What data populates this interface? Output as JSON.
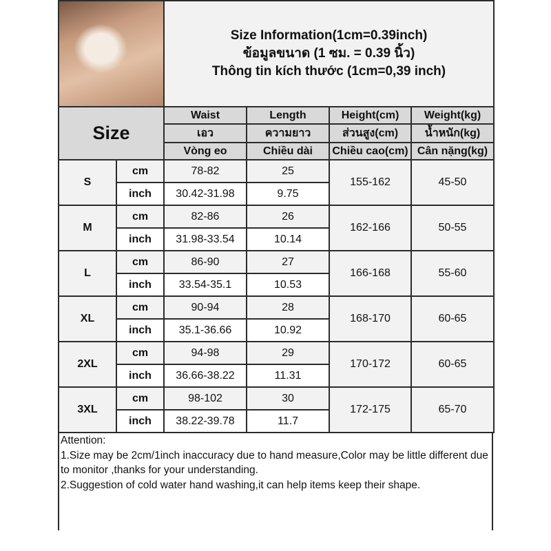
{
  "title": {
    "line1": "Size Information(1cm=0.39inch)",
    "line2": "ข้อมูลขนาด (1 ซม. = 0.39 นิ้ว)",
    "line3": "Thông tin kích thước (1cm=0,39 inch)"
  },
  "header": {
    "size": "Size",
    "columns": [
      {
        "en": "Waist",
        "th": "เอว",
        "vi": "Vòng eo"
      },
      {
        "en": "Length",
        "th": "ความยาว",
        "vi": "Chiều dài"
      },
      {
        "en": "Height(cm)",
        "th": "ส่วนสูง(cm)",
        "vi": "Chiều cao(cm)"
      },
      {
        "en": "Weight(kg)",
        "th": "น้ำหนัก(kg)",
        "vi": "Cân nặng(kg)"
      }
    ]
  },
  "units": {
    "cm": "cm",
    "inch": "inch"
  },
  "sizes": [
    {
      "size": "S",
      "waist_cm": "78-82",
      "length_cm": "25",
      "waist_inch": "30.42-31.98",
      "length_inch": "9.75",
      "height": "155-162",
      "weight": "45-50"
    },
    {
      "size": "M",
      "waist_cm": "82-86",
      "length_cm": "26",
      "waist_inch": "31.98-33.54",
      "length_inch": "10.14",
      "height": "162-166",
      "weight": "50-55"
    },
    {
      "size": "L",
      "waist_cm": "86-90",
      "length_cm": "27",
      "waist_inch": "33.54-35.1",
      "length_inch": "10.53",
      "height": "166-168",
      "weight": "55-60"
    },
    {
      "size": "XL",
      "waist_cm": "90-94",
      "length_cm": "28",
      "waist_inch": "35.1-36.66",
      "length_inch": "10.92",
      "height": "168-170",
      "weight": "60-65"
    },
    {
      "size": "2XL",
      "waist_cm": "94-98",
      "length_cm": "29",
      "waist_inch": "36.66-38.22",
      "length_inch": "11.31",
      "height": "170-172",
      "weight": "60-65"
    },
    {
      "size": "3XL",
      "waist_cm": "98-102",
      "length_cm": "30",
      "waist_inch": "38.22-39.78",
      "length_inch": "11.7",
      "height": "172-175",
      "weight": "65-70"
    }
  ],
  "attention": {
    "heading": "Attention:",
    "note1": "1.Size may be 2cm/1inch inaccuracy due to hand measure,Color may be little different due to monitor ,thanks for your understanding.",
    "note2": "2.Suggestion of cold water hand washing,it can help items keep their shape."
  }
}
